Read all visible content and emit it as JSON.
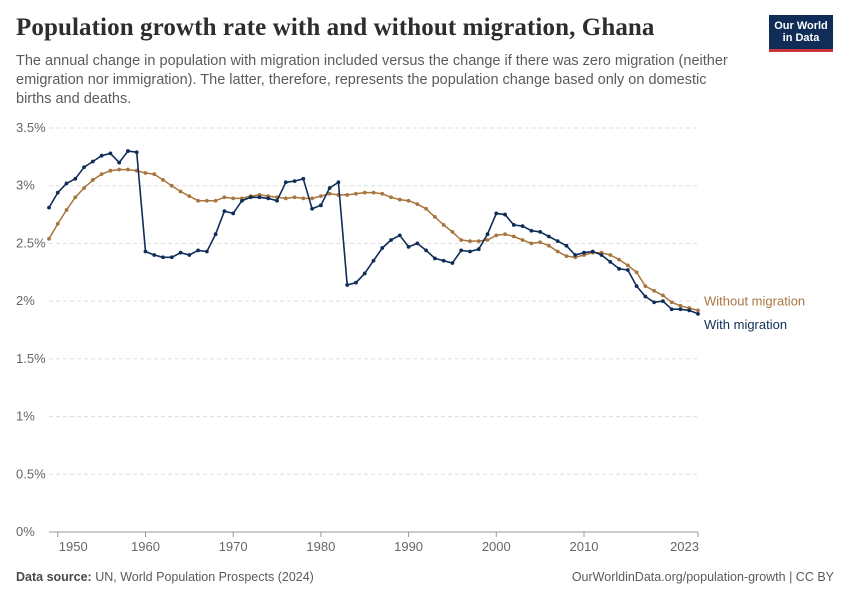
{
  "header": {
    "title": "Population growth rate with and without migration, Ghana",
    "subtitle": "The annual change in population with migration included versus the change if there was zero migration (neither emigration nor immigration). The latter, therefore, represents the population change based only on domestic births and deaths.",
    "logo_line1": "Our World",
    "logo_line2": "in Data"
  },
  "footer": {
    "source_label": "Data source:",
    "source_text": "UN, World Population Prospects (2024)",
    "url_text": "OurWorldinData.org/population-growth | CC BY"
  },
  "colors": {
    "with_migration": "#0f2d57",
    "without_migration": "#a8753e",
    "grid": "#dddddd",
    "axis_text": "#666666"
  },
  "chart_data": {
    "type": "line",
    "x_ticks": [
      "1950",
      "1960",
      "1970",
      "1980",
      "1990",
      "2000",
      "2010",
      "2023"
    ],
    "y_ticks": [
      "0%",
      "0.5%",
      "1%",
      "1.5%",
      "2%",
      "2.5%",
      "3%",
      "3.5%"
    ],
    "xlim": [
      1949,
      2023
    ],
    "ylim": [
      0,
      3.5
    ],
    "grid": true,
    "legend": "inline-right",
    "series": [
      {
        "name": "Without migration",
        "x": [
          1949,
          1950,
          1951,
          1952,
          1953,
          1954,
          1955,
          1956,
          1957,
          1958,
          1959,
          1960,
          1961,
          1962,
          1963,
          1964,
          1965,
          1966,
          1967,
          1968,
          1969,
          1970,
          1971,
          1972,
          1973,
          1974,
          1975,
          1976,
          1977,
          1978,
          1979,
          1980,
          1981,
          1982,
          1983,
          1984,
          1985,
          1986,
          1987,
          1988,
          1989,
          1990,
          1991,
          1992,
          1993,
          1994,
          1995,
          1996,
          1997,
          1998,
          1999,
          2000,
          2001,
          2002,
          2003,
          2004,
          2005,
          2006,
          2007,
          2008,
          2009,
          2010,
          2011,
          2012,
          2013,
          2014,
          2015,
          2016,
          2017,
          2018,
          2019,
          2020,
          2021,
          2022,
          2023
        ],
        "values": [
          2.54,
          2.67,
          2.79,
          2.9,
          2.98,
          3.05,
          3.1,
          3.13,
          3.14,
          3.14,
          3.13,
          3.11,
          3.1,
          3.05,
          3.0,
          2.95,
          2.91,
          2.87,
          2.87,
          2.87,
          2.9,
          2.89,
          2.89,
          2.91,
          2.92,
          2.91,
          2.9,
          2.89,
          2.9,
          2.89,
          2.89,
          2.91,
          2.93,
          2.92,
          2.92,
          2.93,
          2.94,
          2.94,
          2.93,
          2.9,
          2.88,
          2.87,
          2.84,
          2.8,
          2.73,
          2.66,
          2.6,
          2.53,
          2.52,
          2.52,
          2.53,
          2.57,
          2.58,
          2.56,
          2.53,
          2.5,
          2.51,
          2.48,
          2.43,
          2.39,
          2.38,
          2.4,
          2.42,
          2.42,
          2.4,
          2.36,
          2.31,
          2.25,
          2.13,
          2.09,
          2.05,
          1.99,
          1.96,
          1.94,
          1.92
        ]
      },
      {
        "name": "With migration",
        "x": [
          1949,
          1950,
          1951,
          1952,
          1953,
          1954,
          1955,
          1956,
          1957,
          1958,
          1959,
          1960,
          1961,
          1962,
          1963,
          1964,
          1965,
          1966,
          1967,
          1968,
          1969,
          1970,
          1971,
          1972,
          1973,
          1974,
          1975,
          1976,
          1977,
          1978,
          1979,
          1980,
          1981,
          1982,
          1983,
          1984,
          1985,
          1986,
          1987,
          1988,
          1989,
          1990,
          1991,
          1992,
          1993,
          1994,
          1995,
          1996,
          1997,
          1998,
          1999,
          2000,
          2001,
          2002,
          2003,
          2004,
          2005,
          2006,
          2007,
          2008,
          2009,
          2010,
          2011,
          2012,
          2013,
          2014,
          2015,
          2016,
          2017,
          2018,
          2019,
          2020,
          2021,
          2022,
          2023
        ],
        "values": [
          2.81,
          2.94,
          3.02,
          3.06,
          3.16,
          3.21,
          3.26,
          3.28,
          3.2,
          3.3,
          3.29,
          2.43,
          2.4,
          2.38,
          2.38,
          2.42,
          2.4,
          2.44,
          2.43,
          2.58,
          2.78,
          2.76,
          2.87,
          2.9,
          2.9,
          2.89,
          2.87,
          3.03,
          3.04,
          3.06,
          2.8,
          2.83,
          2.98,
          3.03,
          2.14,
          2.16,
          2.24,
          2.35,
          2.46,
          2.53,
          2.57,
          2.47,
          2.5,
          2.44,
          2.37,
          2.35,
          2.33,
          2.44,
          2.43,
          2.45,
          2.58,
          2.76,
          2.75,
          2.66,
          2.65,
          2.61,
          2.6,
          2.56,
          2.52,
          2.48,
          2.4,
          2.42,
          2.43,
          2.4,
          2.34,
          2.28,
          2.27,
          2.13,
          2.04,
          1.99,
          2.0,
          1.93,
          1.93,
          1.92,
          1.89
        ]
      }
    ]
  }
}
